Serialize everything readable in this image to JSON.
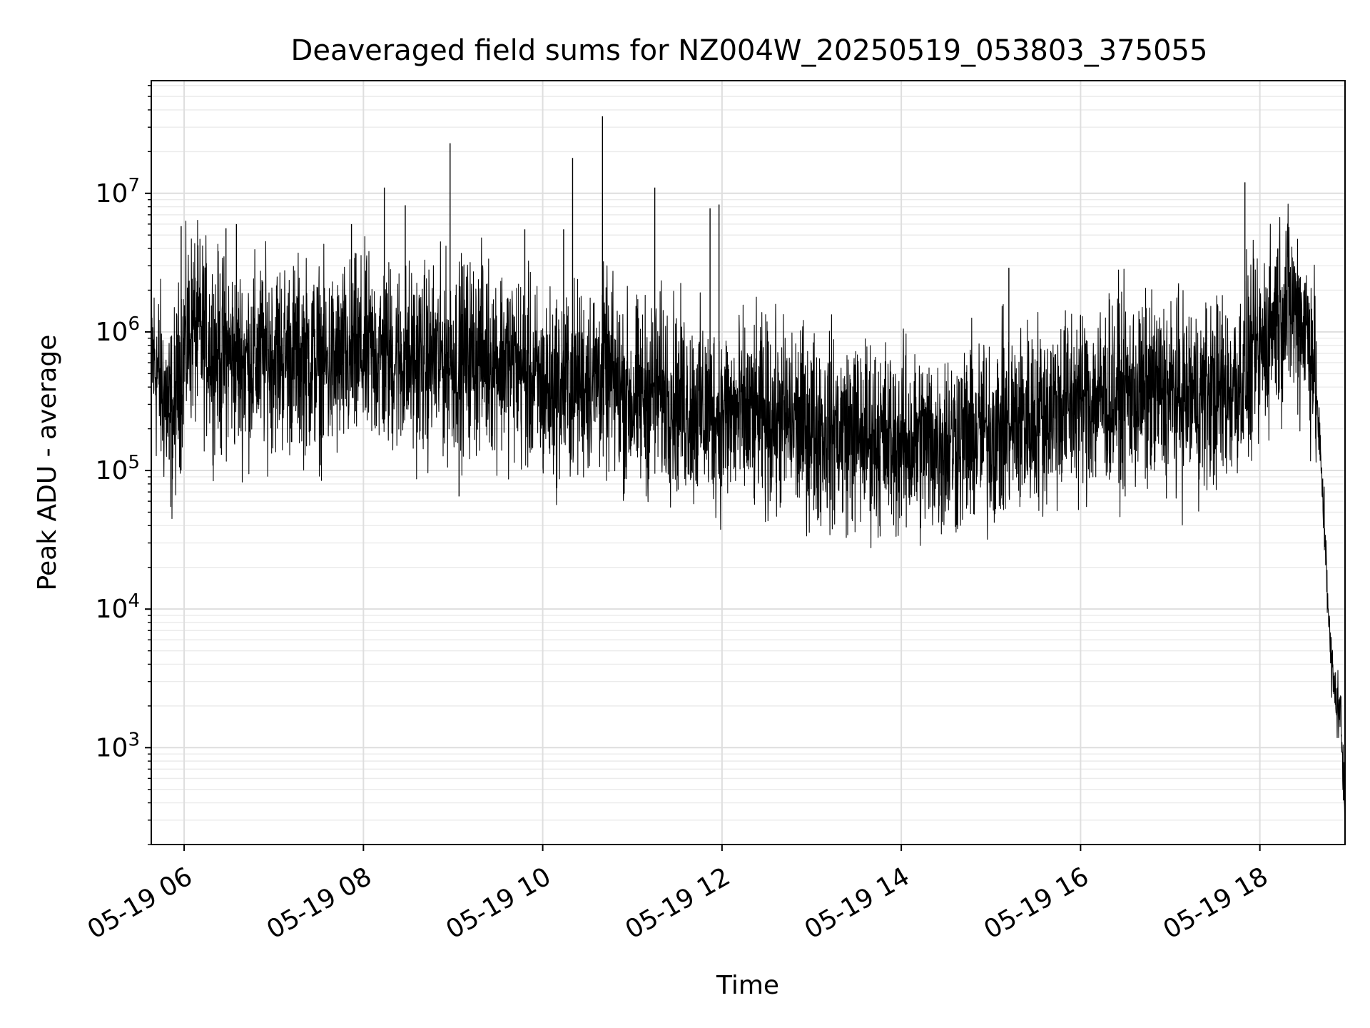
{
  "chart_data": {
    "type": "line",
    "title": "Deaveraged field sums for NZ004W_20250519_053803_375055",
    "xlabel": "Time",
    "ylabel": "Peak ADU - average",
    "x_ticks": [
      {
        "value": "2025-05-19 06:00",
        "label": "05-19 06"
      },
      {
        "value": "2025-05-19 08:00",
        "label": "05-19 08"
      },
      {
        "value": "2025-05-19 10:00",
        "label": "05-19 10"
      },
      {
        "value": "2025-05-19 12:00",
        "label": "05-19 12"
      },
      {
        "value": "2025-05-19 14:00",
        "label": "05-19 14"
      },
      {
        "value": "2025-05-19 16:00",
        "label": "05-19 16"
      },
      {
        "value": "2025-05-19 18:00",
        "label": "05-19 18"
      }
    ],
    "y_ticks": [
      {
        "value": 1000,
        "base": "10",
        "exp": "3"
      },
      {
        "value": 10000,
        "base": "10",
        "exp": "4"
      },
      {
        "value": 100000,
        "base": "10",
        "exp": "5"
      },
      {
        "value": 1000000,
        "base": "10",
        "exp": "6"
      },
      {
        "value": 10000000,
        "base": "10",
        "exp": "7"
      }
    ],
    "xlim": [
      "2025-05-19 05:38",
      "2025-05-19 18:57"
    ],
    "ylim": [
      200,
      65000000
    ],
    "yscale": "log",
    "grid": true,
    "series": [
      {
        "color": "#000000",
        "points": [
          [
            "2025-05-19 05:38",
            700000
          ],
          [
            "2025-05-19 05:45",
            400000
          ],
          [
            "2025-05-19 05:52",
            220000
          ],
          [
            "2025-05-19 05:58",
            600000
          ],
          [
            "2025-05-19 06:05",
            1100000
          ],
          [
            "2025-05-19 06:20",
            750000
          ],
          [
            "2025-05-19 06:40",
            600000
          ],
          [
            "2025-05-19 07:00",
            700000
          ],
          [
            "2025-05-19 07:20",
            650000
          ],
          [
            "2025-05-19 07:40",
            550000
          ],
          [
            "2025-05-19 08:00",
            700000
          ],
          [
            "2025-05-19 08:20",
            650000
          ],
          [
            "2025-05-19 08:40",
            600000
          ],
          [
            "2025-05-19 09:00",
            650000
          ],
          [
            "2025-05-19 09:20",
            700000
          ],
          [
            "2025-05-19 09:40",
            600000
          ],
          [
            "2025-05-19 10:00",
            380000
          ],
          [
            "2025-05-19 10:20",
            420000
          ],
          [
            "2025-05-19 10:40",
            500000
          ],
          [
            "2025-05-19 11:00",
            320000
          ],
          [
            "2025-05-19 11:20",
            380000
          ],
          [
            "2025-05-19 11:40",
            280000
          ],
          [
            "2025-05-19 12:00",
            250000
          ],
          [
            "2025-05-19 12:20",
            240000
          ],
          [
            "2025-05-19 12:40",
            230000
          ],
          [
            "2025-05-19 13:00",
            210000
          ],
          [
            "2025-05-19 13:20",
            190000
          ],
          [
            "2025-05-19 13:40",
            180000
          ],
          [
            "2025-05-19 14:00",
            160000
          ],
          [
            "2025-05-19 14:20",
            160000
          ],
          [
            "2025-05-19 14:40",
            170000
          ],
          [
            "2025-05-19 15:00",
            190000
          ],
          [
            "2025-05-19 15:20",
            230000
          ],
          [
            "2025-05-19 15:40",
            280000
          ],
          [
            "2025-05-19 16:00",
            320000
          ],
          [
            "2025-05-19 16:20",
            350000
          ],
          [
            "2025-05-19 16:40",
            360000
          ],
          [
            "2025-05-19 17:00",
            350000
          ],
          [
            "2025-05-19 17:20",
            340000
          ],
          [
            "2025-05-19 17:40",
            380000
          ],
          [
            "2025-05-19 18:00",
            700000
          ],
          [
            "2025-05-19 18:10",
            1300000
          ],
          [
            "2025-05-19 18:20",
            1600000
          ],
          [
            "2025-05-19 18:30",
            1200000
          ],
          [
            "2025-05-19 18:36",
            700000
          ],
          [
            "2025-05-19 18:40",
            150000
          ],
          [
            "2025-05-19 18:44",
            30000
          ],
          [
            "2025-05-19 18:47",
            5000
          ],
          [
            "2025-05-19 18:50",
            2500
          ],
          [
            "2025-05-19 18:54",
            1800
          ],
          [
            "2025-05-19 18:57",
            300
          ]
        ],
        "spikes": [
          [
            "2025-05-19 08:58",
            23000000
          ],
          [
            "2025-05-19 10:20",
            18000000
          ],
          [
            "2025-05-19 10:40",
            36000000
          ],
          [
            "2025-05-19 08:14",
            11000000
          ],
          [
            "2025-05-19 17:50",
            12000000
          ],
          [
            "2025-05-19 11:58",
            8300000
          ],
          [
            "2025-05-19 11:52",
            7800000
          ],
          [
            "2025-05-19 08:28",
            8200000
          ],
          [
            "2025-05-19 11:15",
            11000000
          ],
          [
            "2025-05-19 05:58",
            5800000
          ],
          [
            "2025-05-19 06:28",
            5600000
          ],
          [
            "2025-05-19 06:35",
            6000000
          ],
          [
            "2025-05-19 07:52",
            6000000
          ],
          [
            "2025-05-19 09:48",
            5500000
          ],
          [
            "2025-05-19 10:14",
            5500000
          ],
          [
            "2025-05-19 15:12",
            2900000
          ],
          [
            "2025-05-19 18:12",
            4000000
          ],
          [
            "2025-05-19 09:04",
            65000
          ],
          [
            "2025-05-19 06:25",
            130000
          ],
          [
            "2025-05-19 05:50",
            120000
          ]
        ]
      }
    ]
  }
}
